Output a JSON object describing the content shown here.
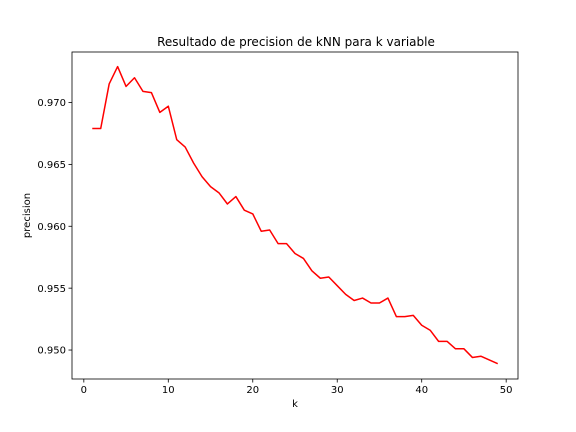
{
  "chart_data": {
    "type": "line",
    "title": "Resultado de precision de kNN para k variable",
    "xlabel": "k",
    "ylabel": "precision",
    "xlim": [
      -1.4,
      51.4
    ],
    "ylim": [
      0.94766,
      0.97408
    ],
    "xticks": [
      0,
      10,
      20,
      30,
      40,
      50
    ],
    "yticks": [
      0.95,
      0.955,
      0.96,
      0.965,
      0.97
    ],
    "xtick_labels": [
      "0",
      "10",
      "20",
      "30",
      "40",
      "50"
    ],
    "ytick_labels": [
      "0.950",
      "0.955",
      "0.960",
      "0.965",
      "0.970"
    ],
    "grid": false,
    "line_color": "#ff0000",
    "series": [
      {
        "x": [
          1,
          2,
          3,
          4,
          5,
          6,
          7,
          8,
          9,
          10,
          11,
          12,
          13,
          14,
          15,
          16,
          17,
          18,
          19,
          20,
          21,
          22,
          23,
          24,
          25,
          26,
          27,
          28,
          29,
          30,
          31,
          32,
          33,
          34,
          35,
          36,
          37,
          38,
          39,
          40,
          41,
          42,
          43,
          44,
          45,
          46,
          47,
          48,
          49
        ],
        "values": [
          0.9679,
          0.9679,
          0.9715,
          0.9729,
          0.9713,
          0.972,
          0.9709,
          0.9708,
          0.9692,
          0.9697,
          0.967,
          0.9664,
          0.9651,
          0.964,
          0.9632,
          0.9627,
          0.9618,
          0.9624,
          0.9613,
          0.961,
          0.9596,
          0.9597,
          0.9586,
          0.9586,
          0.9578,
          0.9574,
          0.9564,
          0.9558,
          0.9559,
          0.9552,
          0.9545,
          0.954,
          0.9542,
          0.9538,
          0.9538,
          0.9542,
          0.9527,
          0.9527,
          0.9528,
          0.952,
          0.9516,
          0.9507,
          0.9507,
          0.9501,
          0.9501,
          0.9494,
          0.9495,
          0.9492,
          0.9489
        ]
      }
    ]
  }
}
